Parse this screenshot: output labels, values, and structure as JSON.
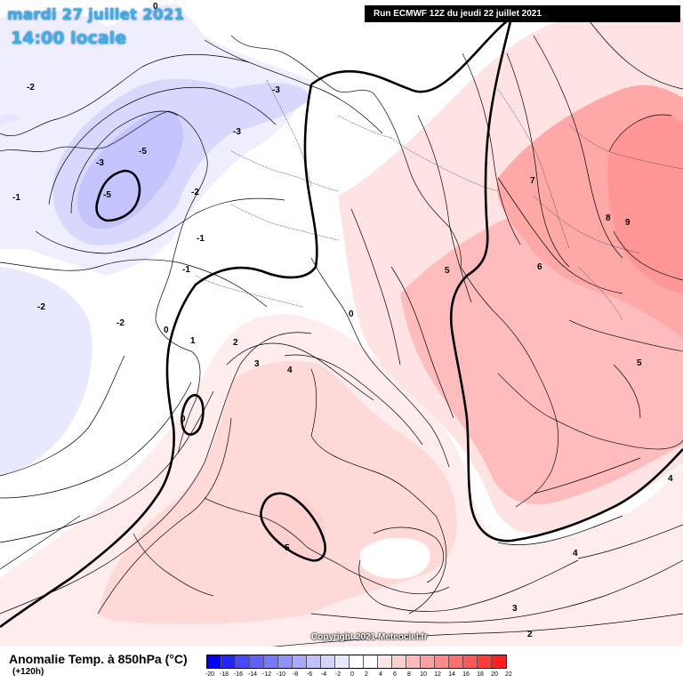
{
  "header": {
    "date": "mardi 27 juillet 2021",
    "time": "14:00 locale",
    "run": "Run ECMWF 12Z du jeudi 22 juillet 2021"
  },
  "copyright": "Copyright 2021 Meteociel.fr",
  "legend": {
    "title": "Anomalie Temp. à 850hPa (°C)",
    "lead": "(+120h)",
    "ticks": [
      "-20",
      "-18",
      "-16",
      "-14",
      "-12",
      "-10",
      "-8",
      "-6",
      "-4",
      "-2",
      "0",
      "2",
      "4",
      "6",
      "8",
      "10",
      "12",
      "14",
      "16",
      "18",
      "20",
      "22"
    ],
    "colors": [
      "#0000ff",
      "#2424ff",
      "#4848ff",
      "#6060ff",
      "#7878ff",
      "#9090ff",
      "#a8a8ff",
      "#c0c0ff",
      "#d4d4ff",
      "#e8e8ff",
      "#ffffff",
      "#ffffff",
      "#ffe6e6",
      "#ffd0d0",
      "#ffbaba",
      "#ffa0a0",
      "#ff8888",
      "#ff7070",
      "#ff5858",
      "#ff3c3c",
      "#ff1e1e"
    ]
  },
  "contour_labels": {
    "l1": "-2",
    "l2": "-3",
    "l3": "-5",
    "l4": "-5",
    "l5": "-3",
    "l6": "-3",
    "l7": "-2",
    "l8": "-1",
    "l9": "-1",
    "l10": "-1",
    "l11": "-2",
    "l12": "-2",
    "l13": "0",
    "l14": "0",
    "l15": "1",
    "l16": "2",
    "l17": "3",
    "l18": "4",
    "l19": "0",
    "l20": "0",
    "l21": "5",
    "l22": "6",
    "l23": "7",
    "l24": "8",
    "l25": "9",
    "l26": "5",
    "l27": "4",
    "l28": "4",
    "l29": "3",
    "l30": "2",
    "l31": "5"
  }
}
